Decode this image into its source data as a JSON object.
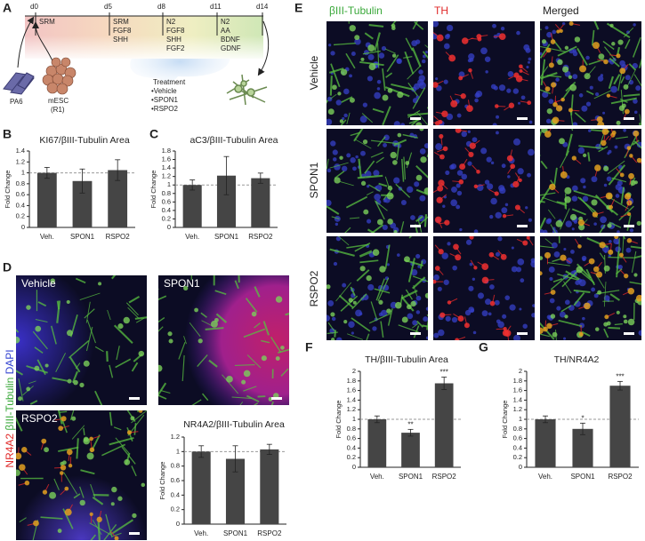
{
  "figure": {
    "panel_labels": [
      "A",
      "B",
      "C",
      "D",
      "E",
      "F",
      "G"
    ],
    "timeline": {
      "days": [
        "d0",
        "d5",
        "d8",
        "d11",
        "d14"
      ],
      "stages": [
        [
          "SRM"
        ],
        [
          "SRM",
          "FGF8",
          "SHH"
        ],
        [
          "N2",
          "FGF8",
          "SHH",
          "FGF2"
        ],
        [
          "N2",
          "AA",
          "BDNF",
          "GDNF"
        ]
      ],
      "treatment_title": "Treatment",
      "treatments": [
        "•Vehicle",
        "•SPON1",
        "•RSPO2"
      ],
      "cells": [
        "PA6",
        "mESC",
        "(R1)"
      ]
    },
    "panel_d": {
      "stain_labels": [
        "NR4A2",
        "βIII-Tubulin",
        "DAPI"
      ],
      "images": [
        "Vehicle",
        "SPON1",
        "RSPO2"
      ]
    },
    "panel_e": {
      "columns": [
        "βIII-Tubulin",
        "TH",
        "Merged"
      ],
      "rows": [
        "Vehicle",
        "SPON1",
        "RSPO2"
      ]
    }
  },
  "chart_data": [
    {
      "type": "bar",
      "title": "KI67/βIII-Tubulin Area",
      "y_label": "Fold Change",
      "categories": [
        "Veh.",
        "SPON1",
        "RSPO2"
      ],
      "values": [
        1.0,
        0.85,
        1.05
      ],
      "errors": [
        0.1,
        0.22,
        0.19
      ],
      "color": "#454545",
      "ylim": [
        0,
        1.4
      ],
      "yticks": [
        0,
        0.2,
        0.4,
        0.6,
        0.8,
        1,
        1.2,
        1.4
      ],
      "reference_line": 1
    },
    {
      "type": "bar",
      "title": "aC3/βIII-Tubulin Area",
      "y_label": "Fold Change",
      "categories": [
        "Veh.",
        "SPON1",
        "RSPO2"
      ],
      "values": [
        1.0,
        1.22,
        1.16
      ],
      "errors": [
        0.12,
        0.45,
        0.12
      ],
      "color": "#454545",
      "ylim": [
        0,
        1.8
      ],
      "yticks": [
        0,
        0.2,
        0.4,
        0.6,
        0.8,
        1,
        1.2,
        1.4,
        1.6,
        1.8
      ],
      "reference_line": 1
    },
    {
      "type": "bar",
      "title": "NR4A2/βIII-Tubulin Area",
      "y_label": "Fold Change",
      "categories": [
        "Veh.",
        "SPON1",
        "RSPO2"
      ],
      "values": [
        1.0,
        0.9,
        1.03
      ],
      "errors": [
        0.08,
        0.18,
        0.07
      ],
      "color": "#454545",
      "ylim": [
        0,
        1.2
      ],
      "yticks": [
        0,
        0.2,
        0.4,
        0.6,
        0.8,
        1,
        1.2
      ],
      "reference_line": 1
    },
    {
      "type": "bar",
      "title": "TH/βIII-Tubulin Area",
      "y_label": "Fold Change",
      "categories": [
        "Veh.",
        "SPON1",
        "RSPO2"
      ],
      "values": [
        1.0,
        0.72,
        1.75
      ],
      "errors": [
        0.07,
        0.07,
        0.13
      ],
      "significance": [
        null,
        "**",
        "***"
      ],
      "color": "#454545",
      "ylim": [
        0,
        2
      ],
      "yticks": [
        0,
        0.2,
        0.4,
        0.6,
        0.8,
        1,
        1.2,
        1.4,
        1.6,
        1.8,
        2
      ],
      "reference_line": 1
    },
    {
      "type": "bar",
      "title": "TH/NR4A2",
      "y_label": "Fold Change",
      "categories": [
        "Veh.",
        "SPON1",
        "RSPO2"
      ],
      "values": [
        1.0,
        0.8,
        1.7
      ],
      "errors": [
        0.07,
        0.12,
        0.09
      ],
      "significance": [
        null,
        "*",
        "***"
      ],
      "color": "#454545",
      "ylim": [
        0,
        2
      ],
      "yticks": [
        0,
        0.2,
        0.4,
        0.6,
        0.8,
        1,
        1.2,
        1.4,
        1.6,
        1.8,
        2
      ],
      "reference_line": 1
    }
  ]
}
